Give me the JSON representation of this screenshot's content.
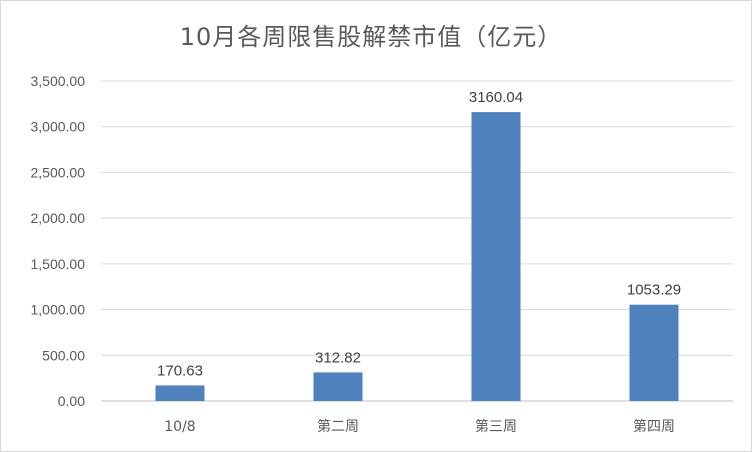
{
  "chart_data": {
    "type": "bar",
    "title": "10月各周限售股解禁市值（亿元）",
    "xlabel": "",
    "ylabel": "",
    "categories": [
      "10/8",
      "第二周",
      "第三周",
      "第四周"
    ],
    "values": [
      170.63,
      312.82,
      3160.04,
      1053.29
    ],
    "data_labels": [
      "170.63",
      "312.82",
      "3160.04",
      "1053.29"
    ],
    "ylim": [
      0,
      3500
    ],
    "yticks": [
      0,
      500,
      1000,
      1500,
      2000,
      2500,
      3000,
      3500
    ],
    "ytick_labels": [
      "0.00",
      "500.00",
      "1,000.00",
      "1,500.00",
      "2,000.00",
      "2,500.00",
      "3,000.00",
      "3,500.00"
    ],
    "grid": true,
    "legend": "none",
    "bar_color": "#4f81bd",
    "grid_color": "#d9d9d9"
  }
}
